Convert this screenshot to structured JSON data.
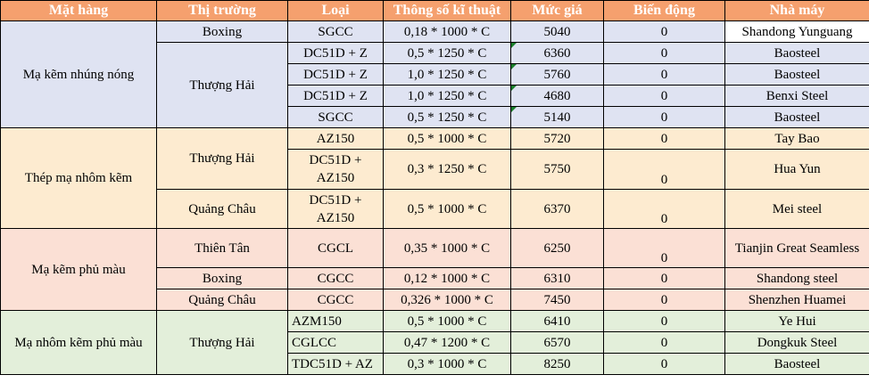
{
  "headers": [
    "Mặt hàng",
    "Thị trường",
    "Loại",
    "Thông số kĩ thuật",
    "Mức giá",
    "Biến động",
    "Nhà máy"
  ],
  "groups": [
    {
      "product": "Mạ kẽm nhúng nóng",
      "rows": [
        {
          "market": "Boxing",
          "type": "SGCC",
          "spec": "0,18 * 1000 * C",
          "price": "5040",
          "change": "0",
          "mill": "Shandong Yunguang"
        },
        {
          "market": "Thượng Hải",
          "type": "DC51D + Z",
          "spec": "0,5 * 1250 * C",
          "price": "6360",
          "change": "0",
          "mill": "Baosteel"
        },
        {
          "type": "DC51D + Z",
          "spec": "1,0 * 1250 * C",
          "price": "5760",
          "change": "0",
          "mill": "Baosteel"
        },
        {
          "type": "DC51D + Z",
          "spec": "1,0 * 1250 * C",
          "price": "4680",
          "change": "0",
          "mill": "Benxi Steel"
        },
        {
          "type": "SGCC",
          "spec": "0,5 * 1250 * C",
          "price": "5140",
          "change": "0",
          "mill": "Baosteel"
        }
      ]
    },
    {
      "product": "Thép mạ nhôm kẽm",
      "rows": [
        {
          "market": "Thượng Hải",
          "type": "AZ150",
          "spec": "0,5 * 1000 * C",
          "price": "5720",
          "change": "0",
          "mill": "Tay Bao"
        },
        {
          "type": "DC51D + AZ150",
          "spec": "0,3 * 1250 * C",
          "price": "5750",
          "change": "0",
          "mill": "Hua Yun"
        },
        {
          "market": "Quảng Châu",
          "type": "DC51D + AZ150",
          "spec": "0,5 * 1000 * C",
          "price": "6370",
          "change": "0",
          "mill": "Mei steel"
        }
      ]
    },
    {
      "product": "Mạ kẽm phủ màu",
      "rows": [
        {
          "market": "Thiên Tân",
          "type": "CGCL",
          "spec": "0,35 * 1000 * C",
          "price": "6250",
          "change": "0",
          "mill": "Tianjin Great Seamless"
        },
        {
          "market": "Boxing",
          "type": "CGCC",
          "spec": "0,12 * 1000 * C",
          "price": "6310",
          "change": "0",
          "mill": "Shandong steel"
        },
        {
          "market": "Quảng Châu",
          "type": "CGCC",
          "spec": "0,326 * 1000 * C",
          "price": "7450",
          "change": "0",
          "mill": "Shenzhen Huamei"
        }
      ]
    },
    {
      "product": "Mạ nhôm kẽm phủ màu",
      "rows": [
        {
          "market": "Thượng Hải",
          "type": "AZM150",
          "spec": "0,5 * 1000 * C",
          "price": "6410",
          "change": "0",
          "mill": "Ye Hui"
        },
        {
          "type": "CGLCC",
          "spec": "0,47 * 1200 * C",
          "price": "6570",
          "change": "0",
          "mill": "Dongkuk Steel"
        },
        {
          "type": "TDC51D + AZ",
          "spec": "0,3 * 1000 * C",
          "price": "8250",
          "change": "0",
          "mill": "Baosteel"
        }
      ]
    }
  ],
  "colors": {
    "header": "#f5a06e",
    "g1": "#dfe3f2",
    "g2": "#fdebd0",
    "g3": "#fbe0d5",
    "g4": "#e3efda",
    "marker": "#1a7f2b"
  }
}
